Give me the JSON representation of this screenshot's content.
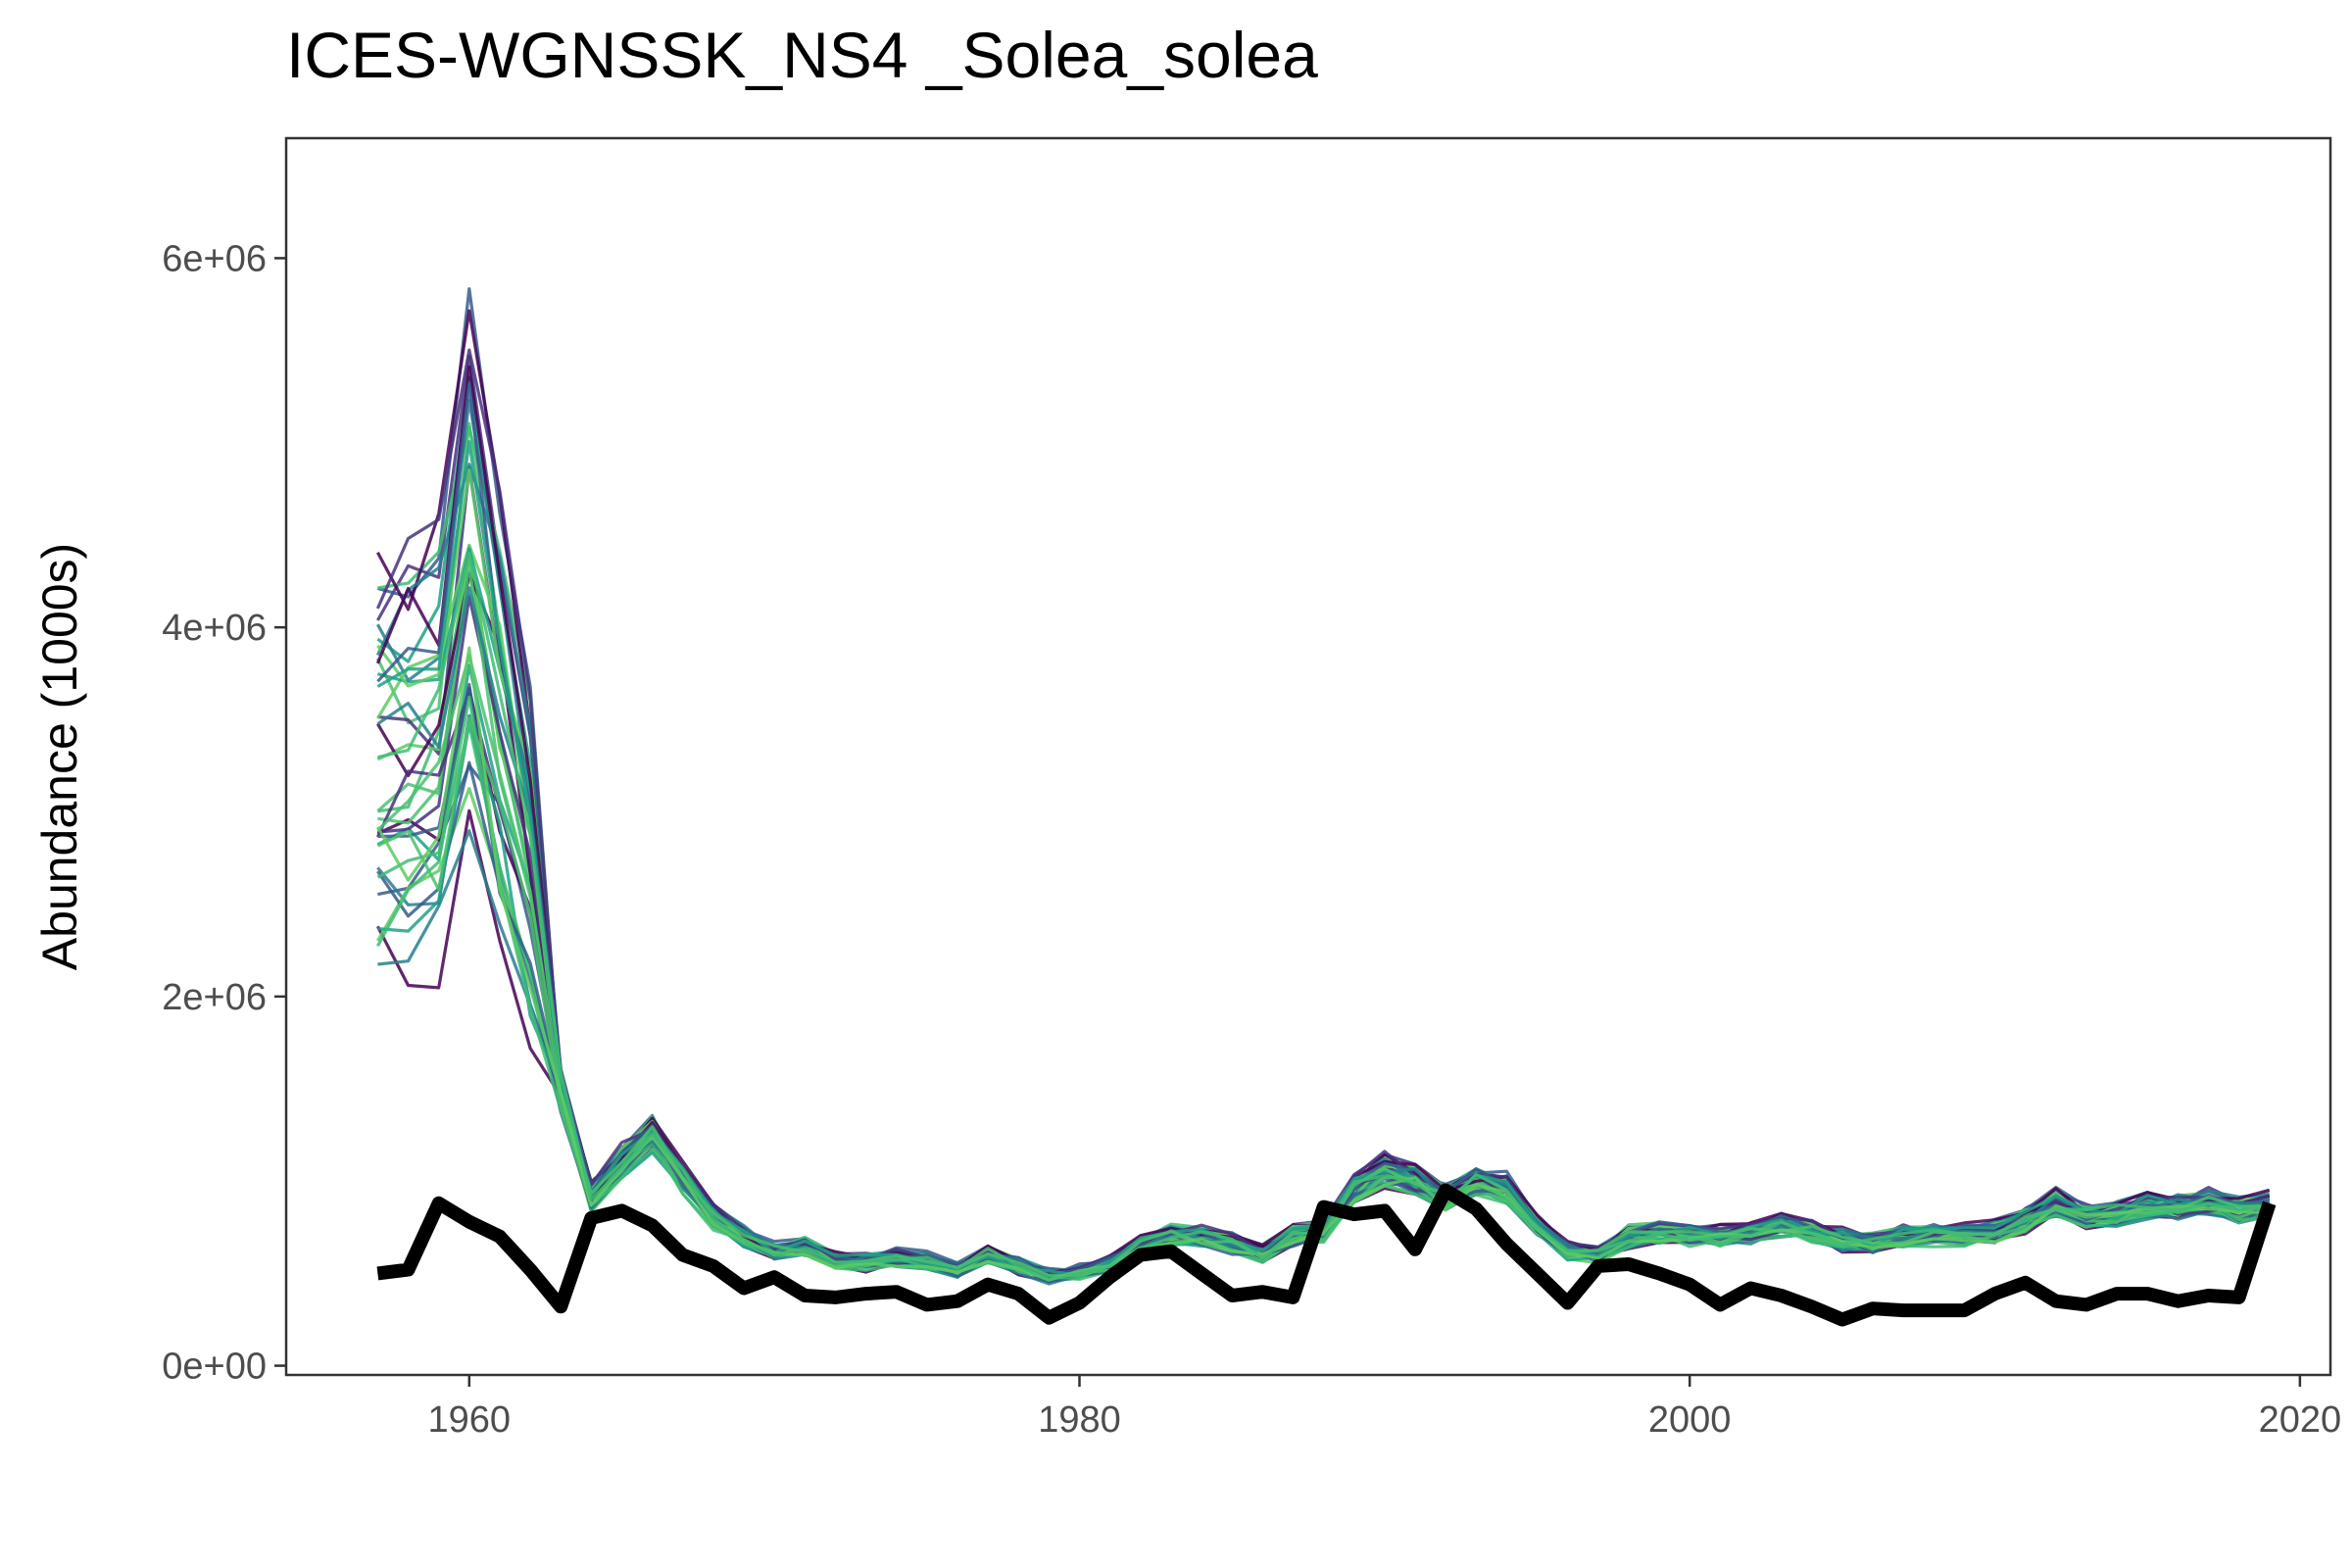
{
  "chart_data": {
    "type": "line",
    "title": "ICES-WGNSSK_NS4 _Solea_solea",
    "xlabel": "",
    "ylabel": "Abundance (1000s)",
    "xlim": [
      1954,
      2021
    ],
    "ylim": [
      -50000,
      6650000
    ],
    "x_ticks": [
      1960,
      1980,
      2000,
      2020
    ],
    "x_tick_labels": [
      "1960",
      "1980",
      "2000",
      "2020"
    ],
    "y_ticks": [
      0,
      2000000,
      4000000,
      6000000
    ],
    "y_tick_labels": [
      "0e+00",
      "2e+06",
      "4e+06",
      "6e+06"
    ],
    "grid": false,
    "legend": "none",
    "ensemble_palette": [
      "#440154",
      "#46337e",
      "#365c8d",
      "#277f8e",
      "#1fa187",
      "#4ac16d",
      "#5ccb63",
      "#3fbc73"
    ],
    "ensemble_count": 40,
    "years": [
      1957,
      1958,
      1959,
      1960,
      1961,
      1962,
      1963,
      1964,
      1965,
      1966,
      1967,
      1968,
      1969,
      1970,
      1971,
      1972,
      1973,
      1974,
      1975,
      1976,
      1977,
      1978,
      1979,
      1980,
      1981,
      1982,
      1983,
      1984,
      1985,
      1986,
      1987,
      1988,
      1989,
      1990,
      1991,
      1992,
      1993,
      1994,
      1995,
      1996,
      1997,
      1998,
      1999,
      2000,
      2001,
      2002,
      2003,
      2004,
      2005,
      2006,
      2007,
      2008,
      2009,
      2010,
      2011,
      2012,
      2013,
      2014,
      2015,
      2016,
      2017,
      2018,
      2019
    ],
    "ensemble_median": [
      3100000,
      3150000,
      3200000,
      4100000,
      3300000,
      2600000,
      1500000,
      900000,
      1100000,
      1250000,
      1000000,
      800000,
      700000,
      620000,
      640000,
      560000,
      560000,
      580000,
      560000,
      520000,
      600000,
      540000,
      480000,
      500000,
      550000,
      650000,
      700000,
      700000,
      650000,
      600000,
      700000,
      720000,
      950000,
      1050000,
      1000000,
      900000,
      1000000,
      950000,
      750000,
      620000,
      600000,
      700000,
      720000,
      700000,
      700000,
      720000,
      760000,
      720000,
      680000,
      660000,
      700000,
      700000,
      700000,
      720000,
      780000,
      880000,
      800000,
      820000,
      860000,
      860000,
      880000,
      840000,
      860000
    ],
    "series": [
      {
        "name": "",
        "values": [
          500000,
          520000,
          880000,
          780000,
          700000,
          520000,
          320000,
          800000,
          840000,
          760000,
          600000,
          540000,
          420000,
          480000,
          380000,
          370000,
          390000,
          400000,
          330000,
          350000,
          440000,
          390000,
          260000,
          340000,
          480000,
          600000,
          620000,
          500000,
          380000,
          400000,
          370000,
          860000,
          820000,
          840000,
          630000,
          950000,
          850000,
          660000,
          500000,
          340000,
          540000,
          550000,
          500000,
          440000,
          330000,
          420000,
          380000,
          320000,
          250000,
          310000,
          300000,
          300000,
          300000,
          390000,
          450000,
          350000,
          330000,
          390000,
          390000,
          350000,
          380000,
          370000,
          880000
        ]
      }
    ]
  }
}
